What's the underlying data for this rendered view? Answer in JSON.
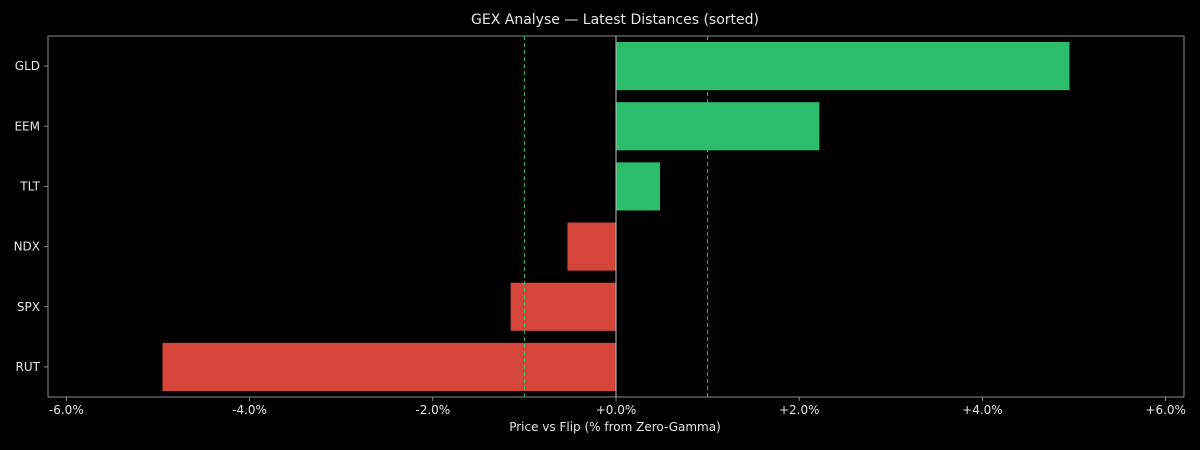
{
  "chart_data": {
    "type": "bar",
    "orientation": "horizontal",
    "title": "GEX Analyse — Latest Distances (sorted)",
    "xlabel": "Price vs Flip (% from Zero-Gamma)",
    "ylabel": "",
    "categories": [
      "GLD",
      "EEM",
      "TLT",
      "NDX",
      "SPX",
      "RUT"
    ],
    "values": [
      4.95,
      2.22,
      0.48,
      -0.53,
      -1.15,
      -4.95
    ],
    "unit": "%",
    "xlim": [
      -6.2,
      6.2
    ],
    "xticks": [
      -6,
      -4,
      -2,
      0,
      2,
      4,
      6
    ],
    "xtick_labels": [
      "-6.0%",
      "-4.0%",
      "-2.0%",
      "+0.0%",
      "+2.0%",
      "+4.0%",
      "+6.0%"
    ],
    "reference_lines": [
      {
        "x": 0,
        "style": "solid"
      },
      {
        "x": -1,
        "style": "dashed"
      },
      {
        "x": 1,
        "style": "dashed"
      }
    ],
    "grid": false,
    "legend": "none",
    "colors": {
      "positive": "#2cbe6c",
      "negative": "#d64539",
      "reference_dashed": "#2cbe6c",
      "zero_line": "#bfbfbf",
      "background": "#000000",
      "axes": "#8a8a8a",
      "text": "#e6e6e6"
    }
  }
}
